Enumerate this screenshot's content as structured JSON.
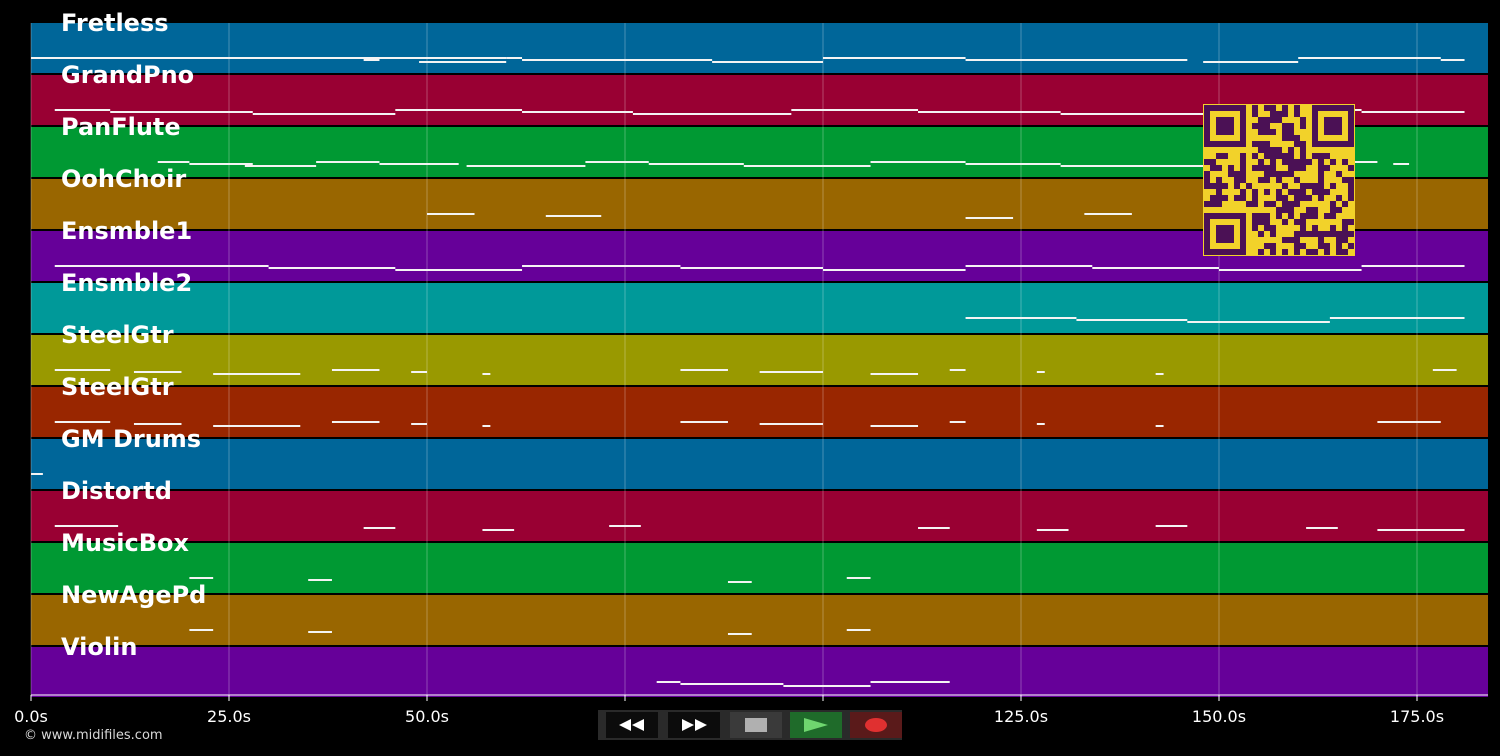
{
  "app": {
    "copyright": "© www.midifiles.com"
  },
  "timeline": {
    "ticks": [
      "0.0s",
      "25.0s",
      "50.0s",
      "75.0s",
      "100.0s",
      "125.0s",
      "150.0s",
      "175.0s"
    ]
  },
  "tracks": [
    {
      "name": "Fretless",
      "color": "#006699",
      "notes": [
        [
          0,
          60
        ],
        [
          42,
          44
        ],
        [
          49,
          60
        ],
        [
          60,
          62
        ],
        [
          62,
          86
        ],
        [
          86,
          100
        ],
        [
          100,
          118
        ],
        [
          118,
          146
        ],
        [
          148,
          160
        ],
        [
          160,
          178
        ],
        [
          178,
          181
        ]
      ]
    },
    {
      "name": "GrandPno",
      "color": "#990033",
      "notes": [
        [
          3,
          10
        ],
        [
          10,
          28
        ],
        [
          28,
          46
        ],
        [
          46,
          62
        ],
        [
          62,
          76
        ],
        [
          76,
          96
        ],
        [
          96,
          112
        ],
        [
          112,
          130
        ],
        [
          130,
          150
        ],
        [
          150,
          168
        ],
        [
          168,
          181
        ]
      ]
    },
    {
      "name": "PanFlute",
      "color": "#009933",
      "notes": [
        [
          16,
          20
        ],
        [
          20,
          28
        ],
        [
          27,
          36
        ],
        [
          36,
          44
        ],
        [
          44,
          54
        ],
        [
          55,
          70
        ],
        [
          70,
          78
        ],
        [
          78,
          90
        ],
        [
          90,
          106
        ],
        [
          106,
          118
        ],
        [
          118,
          130
        ],
        [
          130,
          152
        ],
        [
          152,
          170
        ],
        [
          172,
          174
        ]
      ]
    },
    {
      "name": "OohChoir",
      "color": "#996600",
      "notes": [
        [
          50,
          56
        ],
        [
          65,
          72
        ],
        [
          118,
          124
        ],
        [
          133,
          139
        ]
      ]
    },
    {
      "name": "Ensmble1",
      "color": "#660099",
      "notes": [
        [
          3,
          30
        ],
        [
          30,
          46
        ],
        [
          46,
          62
        ],
        [
          62,
          82
        ],
        [
          82,
          100
        ],
        [
          100,
          118
        ],
        [
          118,
          134
        ],
        [
          134,
          150
        ],
        [
          150,
          168
        ],
        [
          168,
          181
        ]
      ]
    },
    {
      "name": "Ensmble2",
      "color": "#009999",
      "notes": [
        [
          118,
          132
        ],
        [
          132,
          146
        ],
        [
          146,
          164
        ],
        [
          164,
          181
        ]
      ]
    },
    {
      "name": "SteelGtr",
      "color": "#999900",
      "notes": [
        [
          3,
          10
        ],
        [
          13,
          19
        ],
        [
          23,
          34
        ],
        [
          38,
          44
        ],
        [
          48,
          50
        ],
        [
          57,
          58
        ],
        [
          82,
          88
        ],
        [
          92,
          100
        ],
        [
          106,
          112
        ],
        [
          116,
          118
        ],
        [
          127,
          128
        ],
        [
          142,
          143
        ],
        [
          177,
          180
        ]
      ]
    },
    {
      "name": "SteelGtr",
      "color": "#992600",
      "notes": [
        [
          3,
          10
        ],
        [
          13,
          19
        ],
        [
          23,
          34
        ],
        [
          38,
          44
        ],
        [
          48,
          50
        ],
        [
          57,
          58
        ],
        [
          82,
          88
        ],
        [
          92,
          100
        ],
        [
          106,
          112
        ],
        [
          116,
          118
        ],
        [
          127,
          128
        ],
        [
          142,
          143
        ],
        [
          170,
          178
        ]
      ]
    },
    {
      "name": "GM Drums",
      "color": "#006699",
      "notes": [
        [
          0,
          1.5
        ]
      ]
    },
    {
      "name": "Distortd",
      "color": "#990033",
      "notes": [
        [
          3,
          11
        ],
        [
          42,
          46
        ],
        [
          57,
          61
        ],
        [
          73,
          77
        ],
        [
          112,
          116
        ],
        [
          127,
          131
        ],
        [
          142,
          146
        ],
        [
          161,
          165
        ],
        [
          170,
          181
        ]
      ]
    },
    {
      "name": "MusicBox",
      "color": "#009933",
      "notes": [
        [
          20,
          23
        ],
        [
          35,
          38
        ],
        [
          88,
          91
        ],
        [
          103,
          106
        ]
      ]
    },
    {
      "name": "NewAgePd",
      "color": "#996600",
      "notes": [
        [
          20,
          23
        ],
        [
          35,
          38
        ],
        [
          88,
          91
        ],
        [
          103,
          106
        ]
      ]
    },
    {
      "name": "Violin",
      "color": "#660099",
      "notes": [
        [
          79,
          82
        ],
        [
          82,
          95
        ],
        [
          95,
          106
        ],
        [
          106,
          116
        ]
      ]
    }
  ],
  "transport": {
    "rewind_icon": "rewind-icon",
    "fast_forward_icon": "fast-forward-icon",
    "stop_icon": "stop-icon",
    "play_icon": "play-icon",
    "record_icon": "record-icon"
  },
  "qr": {
    "icon": "qr-code"
  }
}
